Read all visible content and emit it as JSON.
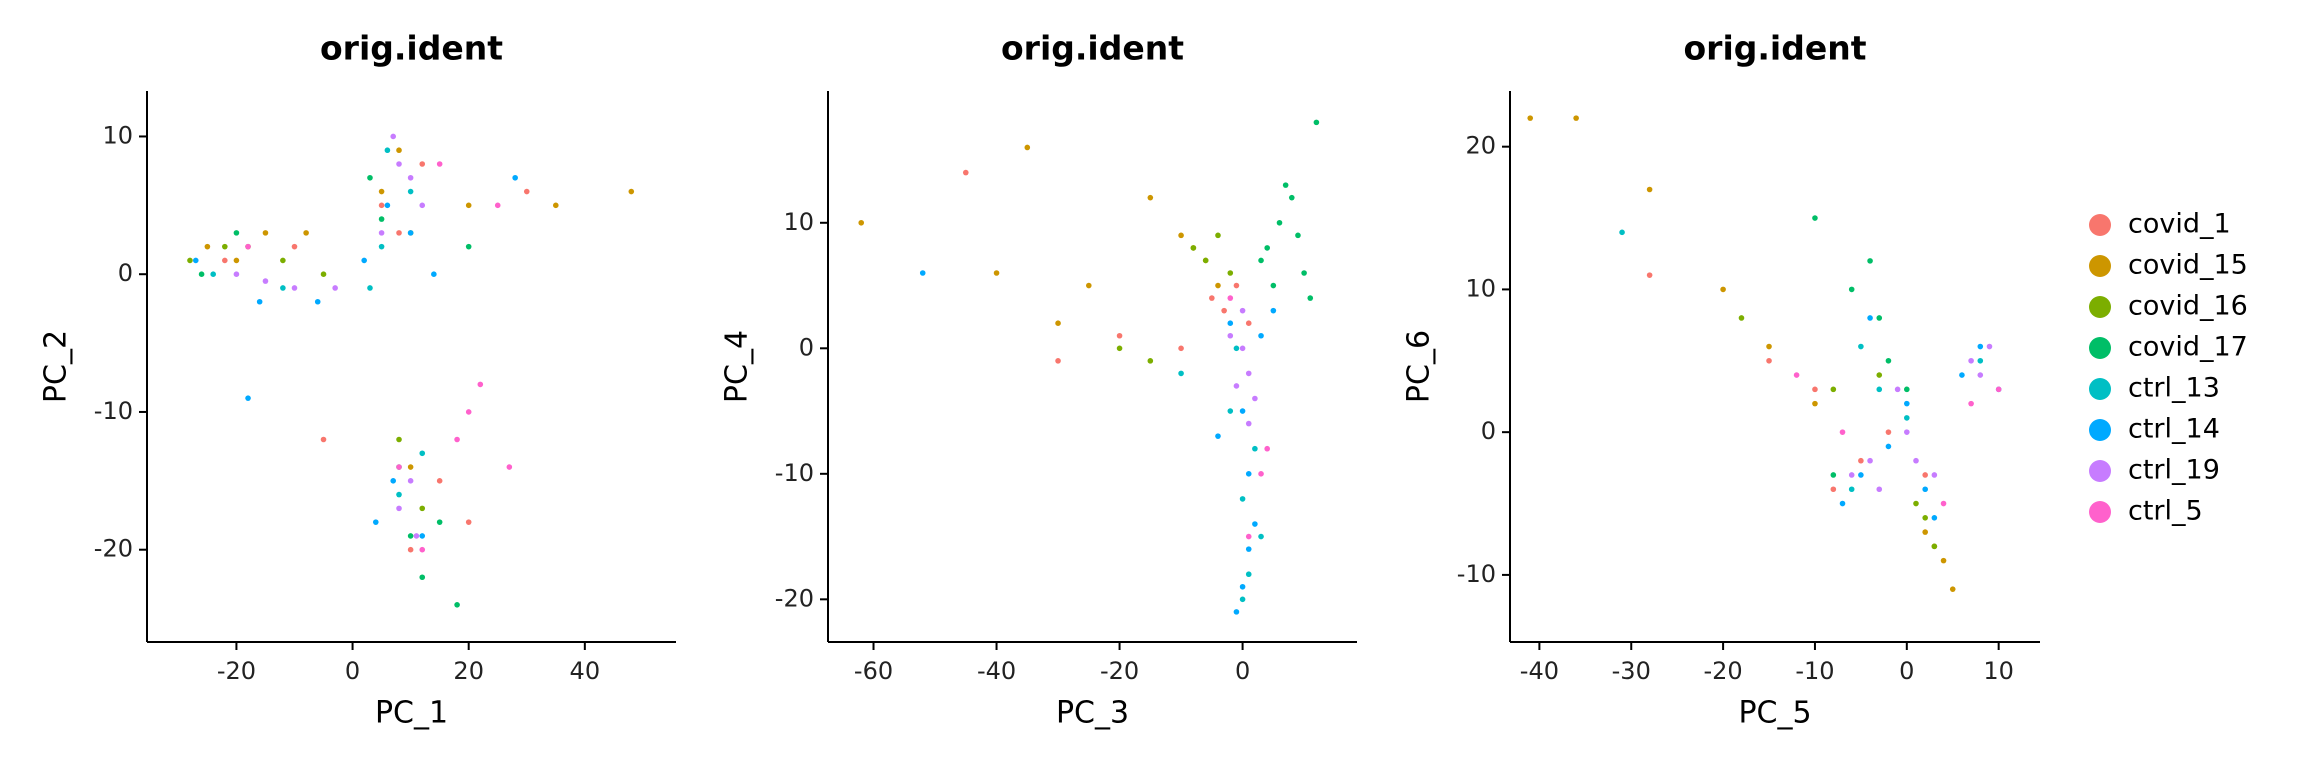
{
  "chart_data": [
    {
      "type": "scatter",
      "title": "orig.ident",
      "x_label": "PC_1",
      "y_label": "PC_2",
      "xlim": [
        -35.4,
        55.7
      ],
      "ylim": [
        -26.7,
        13.3
      ],
      "xticks": [
        -20,
        0,
        20,
        40
      ],
      "yticks": [
        -20,
        -10,
        0,
        10
      ],
      "series": [
        {
          "color": "#F8766D",
          "x": [
            -22,
            -10,
            5,
            12,
            15,
            20,
            8,
            30,
            -5,
            10
          ],
          "y": [
            1,
            2,
            5,
            8,
            -15,
            -18,
            3,
            6,
            -12,
            -20
          ]
        },
        {
          "color": "#CD9600",
          "x": [
            -25,
            -15,
            -8,
            5,
            10,
            20,
            35,
            48,
            -20,
            8
          ],
          "y": [
            2,
            3,
            3,
            6,
            -14,
            5,
            5,
            6,
            1,
            9
          ]
        },
        {
          "color": "#7CAE00",
          "x": [
            -28,
            -18,
            -12,
            -5,
            8,
            12,
            10,
            -22
          ],
          "y": [
            1,
            2,
            1,
            0,
            -12,
            -17,
            3,
            2
          ]
        },
        {
          "color": "#00BE67",
          "x": [
            -26,
            -20,
            10,
            12,
            15,
            8,
            5,
            18,
            20,
            3
          ],
          "y": [
            0,
            3,
            -19,
            -22,
            -18,
            -14,
            4,
            -24,
            2,
            7
          ]
        },
        {
          "color": "#00BFC4",
          "x": [
            -24,
            -12,
            5,
            8,
            12,
            10,
            3,
            6
          ],
          "y": [
            0,
            -1,
            2,
            -16,
            -13,
            6,
            -1,
            9
          ]
        },
        {
          "color": "#00A9FF",
          "x": [
            -27,
            -16,
            -6,
            2,
            6,
            10,
            14,
            7,
            12,
            4,
            -18,
            28
          ],
          "y": [
            1,
            -2,
            -2,
            1,
            5,
            3,
            0,
            -15,
            -19,
            -18,
            -9,
            7
          ]
        },
        {
          "color": "#C77CFF",
          "x": [
            -20,
            -15,
            -10,
            -3,
            8,
            10,
            12,
            8,
            10,
            5,
            11,
            7
          ],
          "y": [
            0,
            -0.5,
            -1,
            -1,
            8,
            7,
            5,
            -17,
            -15,
            3,
            -19,
            10
          ]
        },
        {
          "color": "#FF61CC",
          "x": [
            15,
            25,
            20,
            18,
            12,
            -18,
            8,
            22,
            27
          ],
          "y": [
            8,
            5,
            -10,
            -12,
            -20,
            2,
            -14,
            -8,
            -14
          ]
        }
      ]
    },
    {
      "type": "scatter",
      "title": "orig.ident",
      "x_label": "PC_3",
      "y_label": "PC_4",
      "xlim": [
        -67.4,
        18.6
      ],
      "ylim": [
        -23.4,
        20.5
      ],
      "xticks": [
        -60,
        -40,
        -20,
        0
      ],
      "yticks": [
        -20,
        -10,
        0,
        10
      ],
      "series": [
        {
          "color": "#F8766D",
          "x": [
            -30,
            -20,
            -5,
            -3,
            -1,
            1,
            -10,
            -45
          ],
          "y": [
            -1,
            1,
            4,
            3,
            5,
            2,
            0,
            14
          ]
        },
        {
          "color": "#CD9600",
          "x": [
            -62,
            -35,
            -25,
            -10,
            -8,
            -6,
            -4,
            -40,
            -15,
            -30
          ],
          "y": [
            10,
            16,
            5,
            9,
            8,
            7,
            5,
            6,
            12,
            2
          ]
        },
        {
          "color": "#7CAE00",
          "x": [
            -20,
            -8,
            -6,
            -4,
            -15,
            -2
          ],
          "y": [
            0,
            8,
            7,
            9,
            -1,
            6
          ]
        },
        {
          "color": "#00BE67",
          "x": [
            4,
            6,
            8,
            10,
            5,
            7,
            9,
            12,
            3,
            11
          ],
          "y": [
            8,
            10,
            12,
            6,
            5,
            13,
            9,
            18,
            7,
            4
          ]
        },
        {
          "color": "#00BFC4",
          "x": [
            -2,
            0,
            1,
            2,
            -1,
            0,
            -10,
            3
          ],
          "y": [
            -5,
            -12,
            -18,
            -8,
            0,
            -20,
            -2,
            -15
          ]
        },
        {
          "color": "#00A9FF",
          "x": [
            -52,
            -2,
            0,
            1,
            2,
            0,
            -1,
            1,
            3,
            -4,
            5
          ],
          "y": [
            6,
            2,
            -5,
            -10,
            -14,
            -19,
            -21,
            -16,
            1,
            -7,
            3
          ]
        },
        {
          "color": "#C77CFF",
          "x": [
            -2,
            0,
            1,
            2,
            -1,
            0,
            1
          ],
          "y": [
            1,
            0,
            -2,
            -4,
            -3,
            3,
            -6
          ]
        },
        {
          "color": "#FF61CC",
          "x": [
            3,
            1,
            -2,
            4
          ],
          "y": [
            -10,
            -15,
            4,
            -8
          ]
        }
      ]
    },
    {
      "type": "scatter",
      "title": "orig.ident",
      "x_label": "PC_5",
      "y_label": "PC_6",
      "xlim": [
        -43.2,
        14.5
      ],
      "ylim": [
        -14.7,
        23.9
      ],
      "xticks": [
        -40,
        -30,
        -20,
        -10,
        0,
        10
      ],
      "yticks": [
        -10,
        0,
        10,
        20
      ],
      "series": [
        {
          "name": "covid_1",
          "color": "#F8766D",
          "x": [
            -28,
            -15,
            -10,
            -5,
            2,
            -2,
            -8
          ],
          "y": [
            11,
            5,
            3,
            -2,
            -3,
            0,
            -4
          ]
        },
        {
          "name": "covid_15",
          "color": "#CD9600",
          "x": [
            -41,
            -36,
            -28,
            -20,
            -15,
            2,
            4,
            5,
            3,
            -10
          ],
          "y": [
            22,
            22,
            17,
            10,
            6,
            -7,
            -9,
            -11,
            -8,
            2
          ]
        },
        {
          "name": "covid_16",
          "color": "#7CAE00",
          "x": [
            -18,
            -8,
            2,
            3,
            1,
            -3
          ],
          "y": [
            8,
            3,
            -6,
            -8,
            -5,
            4
          ]
        },
        {
          "name": "covid_17",
          "color": "#00BE67",
          "x": [
            -10,
            -4,
            -3,
            -2,
            -6,
            0,
            -8
          ],
          "y": [
            15,
            12,
            8,
            5,
            10,
            3,
            -3
          ]
        },
        {
          "name": "ctrl_13",
          "color": "#00BFC4",
          "x": [
            -31,
            -5,
            -3,
            0,
            8,
            -6
          ],
          "y": [
            14,
            6,
            3,
            1,
            5,
            -4
          ]
        },
        {
          "name": "ctrl_14",
          "color": "#00A9FF",
          "x": [
            -5,
            -2,
            0,
            2,
            6,
            8,
            10,
            -7,
            3,
            -4
          ],
          "y": [
            -3,
            -1,
            2,
            -4,
            4,
            6,
            3,
            -5,
            -6,
            8
          ]
        },
        {
          "name": "ctrl_19",
          "color": "#C77CFF",
          "x": [
            -6,
            -4,
            -3,
            0,
            1,
            7,
            8,
            9,
            3,
            -1
          ],
          "y": [
            -3,
            -2,
            -4,
            0,
            -2,
            5,
            4,
            6,
            -3,
            3
          ]
        },
        {
          "name": "ctrl_5",
          "color": "#FF61CC",
          "x": [
            -12,
            4,
            7,
            10,
            -7
          ],
          "y": [
            4,
            -5,
            2,
            3,
            0
          ]
        }
      ]
    }
  ]
}
